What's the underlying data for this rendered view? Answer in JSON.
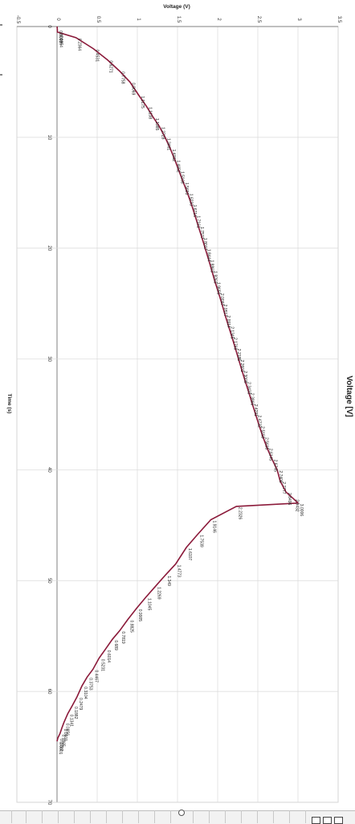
{
  "chart_data": {
    "type": "line",
    "orientation": "rotated-90-clockwise",
    "title": "Voltage (V)",
    "xlabel": "Time (s)",
    "ylabel": "Voltage (V)",
    "legend": [
      "Voltage [V]"
    ],
    "legend_position": "right",
    "xlim": [
      0,
      70
    ],
    "ylim": [
      -0.5,
      3.5
    ],
    "x_ticks": [
      0,
      10,
      20,
      30,
      40,
      50,
      60,
      70
    ],
    "y_ticks": [
      "-0.5",
      "0",
      "0.5",
      "1",
      "1.5",
      "2",
      "2.5",
      "3",
      "3.5"
    ],
    "grid": true,
    "line_color": "#8b1a3a",
    "series": [
      {
        "name": "Voltage [V]",
        "points": [
          [
            0.0,
            0.0018
          ],
          [
            0.1,
            0.0018
          ],
          [
            0.3,
            0.0036
          ],
          [
            0.5,
            0.0054
          ],
          [
            1.0,
            0.2364
          ],
          [
            2.0,
            0.4531
          ],
          [
            3.0,
            0.6271
          ],
          [
            4.0,
            0.7758
          ],
          [
            5.0,
            0.9069
          ],
          [
            6.2,
            1.0175
          ],
          [
            7.2,
            1.1138
          ],
          [
            8.2,
            1.1985
          ],
          [
            9.0,
            1.2728
          ],
          [
            10.0,
            1.3461
          ],
          [
            11.0,
            1.4092
          ],
          [
            12.0,
            1.4652
          ],
          [
            13.0,
            1.5168
          ],
          [
            14.0,
            1.5693
          ],
          [
            15.0,
            1.6233
          ],
          [
            16.0,
            1.6716
          ],
          [
            17.0,
            1.7161
          ],
          [
            18.0,
            1.7577
          ],
          [
            19.0,
            1.8017
          ],
          [
            20.0,
            1.8444
          ],
          [
            21.0,
            1.8863
          ],
          [
            22.0,
            1.9263
          ],
          [
            23.0,
            1.9655
          ],
          [
            24.0,
            2.0097
          ],
          [
            25.0,
            2.0517
          ],
          [
            26.0,
            2.0914
          ],
          [
            27.0,
            2.1345
          ],
          [
            28.0,
            2.1768
          ],
          [
            29.0,
            2.2185
          ],
          [
            30.0,
            2.2601
          ],
          [
            31.0,
            2.3008
          ],
          [
            32.0,
            2.3433
          ],
          [
            33.0,
            2.3866
          ],
          [
            34.0,
            2.4291
          ],
          [
            35.0,
            2.4732
          ],
          [
            36.0,
            2.5159
          ],
          [
            37.0,
            2.5635
          ],
          [
            38.0,
            2.6145
          ],
          [
            39.0,
            2.6745
          ],
          [
            40.0,
            2.7406
          ],
          [
            41.0,
            2.7777
          ],
          [
            42.0,
            2.8496
          ],
          [
            42.6,
            2.9432
          ],
          [
            43.0,
            3.0006
          ],
          [
            43.3,
            2.2326
          ],
          [
            44.5,
            1.9146
          ],
          [
            45.8,
            1.7539
          ],
          [
            47.0,
            1.6107
          ],
          [
            48.5,
            1.4773
          ],
          [
            49.5,
            1.349
          ],
          [
            50.5,
            1.2269
          ],
          [
            51.5,
            1.1045
          ],
          [
            52.5,
            0.9905
          ],
          [
            53.5,
            0.8825
          ],
          [
            54.5,
            0.7819
          ],
          [
            55.3,
            0.689
          ],
          [
            56.2,
            0.6014
          ],
          [
            57.0,
            0.5231
          ],
          [
            58.0,
            0.4467
          ],
          [
            58.7,
            0.3753
          ],
          [
            59.5,
            0.3104
          ],
          [
            60.5,
            0.2479
          ],
          [
            61.3,
            0.1882
          ],
          [
            62.0,
            0.1341
          ],
          [
            62.8,
            0.0856
          ],
          [
            63.3,
            0.0601
          ],
          [
            63.8,
            0.0365
          ],
          [
            64.2,
            0.0102
          ],
          [
            64.5,
            0.0001
          ]
        ]
      }
    ],
    "data_labels": [
      {
        "x": 0.3,
        "y": 0.0018,
        "text": "0.0018"
      },
      {
        "x": 0.5,
        "y": 0.0036,
        "text": "0.0036"
      },
      {
        "x": 0.7,
        "y": 0.0054,
        "text": "0.0054"
      },
      {
        "x": 1.0,
        "y": 0.2364,
        "text": "0.2364"
      },
      {
        "x": 2.0,
        "y": 0.4531,
        "text": "0.4531"
      },
      {
        "x": 3.0,
        "y": 0.6271,
        "text": "0.6271"
      },
      {
        "x": 4.0,
        "y": 0.7758,
        "text": "0.7758"
      },
      {
        "x": 5.0,
        "y": 0.9069,
        "text": "0.9069"
      },
      {
        "x": 6.2,
        "y": 1.0175,
        "text": "1.0175"
      },
      {
        "x": 7.2,
        "y": 1.1138,
        "text": "1.1138"
      },
      {
        "x": 8.2,
        "y": 1.1985,
        "text": "1.1985"
      },
      {
        "x": 9.0,
        "y": 1.2728,
        "text": "1.2728"
      },
      {
        "x": 10.0,
        "y": 1.3461,
        "text": "1.3461"
      },
      {
        "x": 11.0,
        "y": 1.4092,
        "text": "1.4092"
      },
      {
        "x": 12.0,
        "y": 1.4652,
        "text": "1.4652"
      },
      {
        "x": 13.0,
        "y": 1.5168,
        "text": "1.5168"
      },
      {
        "x": 14.0,
        "y": 1.5693,
        "text": "1.5693"
      },
      {
        "x": 15.0,
        "y": 1.6233,
        "text": "1.6233"
      },
      {
        "x": 16.0,
        "y": 1.6716,
        "text": "1.6716"
      },
      {
        "x": 17.0,
        "y": 1.7161,
        "text": "1.7161"
      },
      {
        "x": 18.0,
        "y": 1.7577,
        "text": "1.7577"
      },
      {
        "x": 19.0,
        "y": 1.8017,
        "text": "1.8017"
      },
      {
        "x": 20.0,
        "y": 1.8444,
        "text": "1.8444"
      },
      {
        "x": 21.0,
        "y": 1.8863,
        "text": "1.8863"
      },
      {
        "x": 22.0,
        "y": 1.9263,
        "text": "1.9263"
      },
      {
        "x": 23.0,
        "y": 1.9655,
        "text": "1.9655"
      },
      {
        "x": 24.0,
        "y": 2.0097,
        "text": "2.0097"
      },
      {
        "x": 25.0,
        "y": 2.0517,
        "text": "2.0517"
      },
      {
        "x": 26.0,
        "y": 2.0914,
        "text": "2.0914"
      },
      {
        "x": 27.0,
        "y": 2.1345,
        "text": "2.1345"
      },
      {
        "x": 28.0,
        "y": 2.1768,
        "text": "2.1768"
      },
      {
        "x": 29.0,
        "y": 2.2185,
        "text": "2.2185"
      },
      {
        "x": 30.0,
        "y": 2.2601,
        "text": "2.2601"
      },
      {
        "x": 31.0,
        "y": 2.3008,
        "text": "2.3008"
      },
      {
        "x": 32.0,
        "y": 2.3433,
        "text": "2.3433"
      },
      {
        "x": 33.0,
        "y": 2.3866,
        "text": "2.3866"
      },
      {
        "x": 34.0,
        "y": 2.4291,
        "text": "2.4291"
      },
      {
        "x": 35.0,
        "y": 2.4732,
        "text": "2.4732"
      },
      {
        "x": 36.0,
        "y": 2.5159,
        "text": "2.5159"
      },
      {
        "x": 37.0,
        "y": 2.5635,
        "text": "2.5635"
      },
      {
        "x": 38.0,
        "y": 2.6145,
        "text": "2.6145"
      },
      {
        "x": 39.0,
        "y": 2.6745,
        "text": "2.6745"
      },
      {
        "x": 40.0,
        "y": 2.7406,
        "text": "2.7406"
      },
      {
        "x": 41.0,
        "y": 2.7777,
        "text": "2.7777"
      },
      {
        "x": 42.0,
        "y": 2.8496,
        "text": "2.8496"
      },
      {
        "x": 42.6,
        "y": 2.9432,
        "text": "2.9432"
      },
      {
        "x": 43.0,
        "y": 3.0006,
        "text": "3.0006"
      },
      {
        "x": 43.3,
        "y": 2.2326,
        "text": "2.2326"
      },
      {
        "x": 44.5,
        "y": 1.9146,
        "text": "1.9146"
      },
      {
        "x": 45.8,
        "y": 1.7539,
        "text": "1.7539"
      },
      {
        "x": 47.0,
        "y": 1.6107,
        "text": "1.6107"
      },
      {
        "x": 48.5,
        "y": 1.4773,
        "text": "1.4773"
      },
      {
        "x": 49.5,
        "y": 1.349,
        "text": "1.349"
      },
      {
        "x": 50.5,
        "y": 1.2269,
        "text": "1.2269"
      },
      {
        "x": 51.5,
        "y": 1.1045,
        "text": "1.1045"
      },
      {
        "x": 52.5,
        "y": 0.9905,
        "text": "0.9905"
      },
      {
        "x": 53.5,
        "y": 0.8825,
        "text": "0.8825"
      },
      {
        "x": 54.5,
        "y": 0.7819,
        "text": "0.7819"
      },
      {
        "x": 55.3,
        "y": 0.689,
        "text": "0.689"
      },
      {
        "x": 56.2,
        "y": 0.6014,
        "text": "0.6014"
      },
      {
        "x": 57.0,
        "y": 0.5231,
        "text": "0.5231"
      },
      {
        "x": 58.0,
        "y": 0.4467,
        "text": "0.4467"
      },
      {
        "x": 58.7,
        "y": 0.3753,
        "text": "0.3753"
      },
      {
        "x": 59.5,
        "y": 0.3104,
        "text": "0.3104"
      },
      {
        "x": 60.5,
        "y": 0.2479,
        "text": "0.2479"
      },
      {
        "x": 61.3,
        "y": 0.1882,
        "text": "0.1882"
      },
      {
        "x": 62.0,
        "y": 0.1341,
        "text": "0.1341"
      },
      {
        "x": 62.8,
        "y": 0.0856,
        "text": "0.0856"
      },
      {
        "x": 63.3,
        "y": 0.0601,
        "text": "0.0601"
      },
      {
        "x": 63.8,
        "y": 0.0365,
        "text": "0.0365"
      },
      {
        "x": 64.2,
        "y": 0.0102,
        "text": "0.0102"
      },
      {
        "x": 64.5,
        "y": 0.0001,
        "text": "0.0001"
      }
    ]
  }
}
